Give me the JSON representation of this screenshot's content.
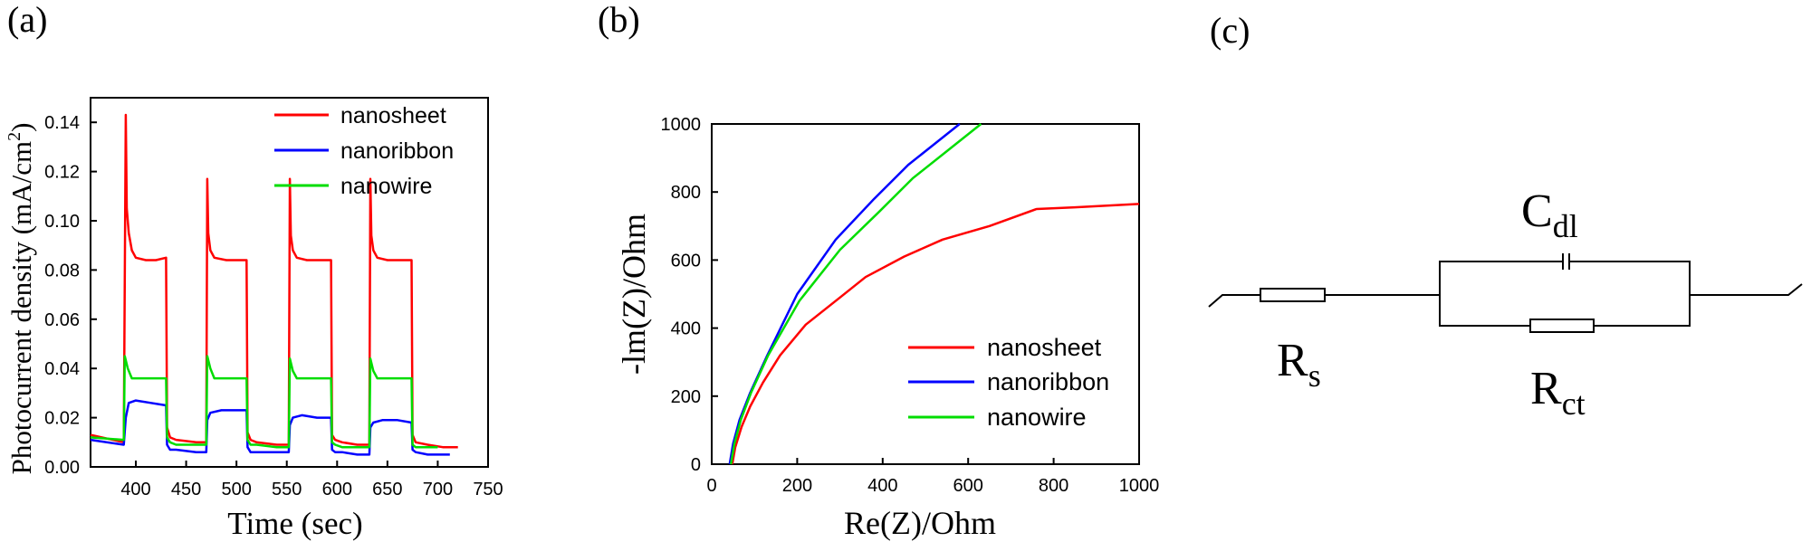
{
  "figure": {
    "panel_labels": [
      "(a)",
      "(b)",
      "(c)"
    ]
  },
  "chart_data": [
    {
      "type": "line",
      "panel": "(a)",
      "xlabel": "Time (sec)",
      "ylabel_main": "Photocurrent density (mA/cm",
      "ylabel_sup": "2",
      "ylabel_end": ")",
      "xlim": [
        355,
        750
      ],
      "ylim": [
        0.0,
        0.15
      ],
      "xticks": [
        400,
        450,
        500,
        550,
        600,
        650,
        700,
        750
      ],
      "yticks": [
        0.0,
        0.02,
        0.04,
        0.06,
        0.08,
        0.1,
        0.12,
        0.14
      ],
      "xtick_labels": [
        "400",
        "450",
        "500",
        "550",
        "600",
        "650",
        "700",
        "750"
      ],
      "ytick_labels": [
        "0.00",
        "0.02",
        "0.04",
        "0.06",
        "0.08",
        "0.10",
        "0.12",
        "0.14"
      ],
      "legend": {
        "position": "top-right",
        "entries": [
          "nanosheet",
          "nanoribbon",
          "nanowire"
        ]
      },
      "series": [
        {
          "name": "nanosheet",
          "color": "#ff0000",
          "x": [
            355,
            388,
            390,
            391,
            393,
            396,
            400,
            410,
            420,
            430,
            431,
            434,
            440,
            460,
            470,
            471,
            472,
            474,
            478,
            490,
            505,
            510,
            511,
            514,
            520,
            540,
            552,
            553,
            554,
            556,
            560,
            570,
            585,
            594,
            595,
            598,
            605,
            620,
            632,
            633,
            634,
            636,
            640,
            650,
            665,
            674,
            675,
            678,
            690,
            705,
            720
          ],
          "y": [
            0.013,
            0.01,
            0.143,
            0.105,
            0.095,
            0.088,
            0.085,
            0.084,
            0.084,
            0.085,
            0.016,
            0.012,
            0.011,
            0.01,
            0.01,
            0.117,
            0.095,
            0.088,
            0.085,
            0.084,
            0.084,
            0.084,
            0.014,
            0.011,
            0.01,
            0.009,
            0.009,
            0.117,
            0.094,
            0.088,
            0.085,
            0.084,
            0.084,
            0.084,
            0.013,
            0.011,
            0.01,
            0.009,
            0.009,
            0.117,
            0.094,
            0.088,
            0.085,
            0.084,
            0.084,
            0.084,
            0.013,
            0.01,
            0.009,
            0.008,
            0.008
          ]
        },
        {
          "name": "nanoribbon",
          "color": "#0000ff",
          "x": [
            355,
            388,
            390,
            393,
            400,
            415,
            430,
            431,
            434,
            440,
            460,
            470,
            471,
            474,
            485,
            500,
            510,
            511,
            514,
            520,
            540,
            552,
            553,
            556,
            565,
            580,
            594,
            595,
            598,
            605,
            620,
            632,
            633,
            636,
            645,
            660,
            674,
            675,
            678,
            690,
            712
          ],
          "y": [
            0.011,
            0.009,
            0.02,
            0.026,
            0.027,
            0.026,
            0.025,
            0.009,
            0.007,
            0.007,
            0.006,
            0.006,
            0.019,
            0.022,
            0.023,
            0.023,
            0.023,
            0.008,
            0.006,
            0.006,
            0.006,
            0.006,
            0.017,
            0.02,
            0.021,
            0.02,
            0.02,
            0.007,
            0.006,
            0.006,
            0.005,
            0.005,
            0.016,
            0.018,
            0.019,
            0.019,
            0.018,
            0.007,
            0.006,
            0.005,
            0.005
          ]
        },
        {
          "name": "nanowire",
          "color": "#00dd00",
          "x": [
            355,
            388,
            389,
            392,
            396,
            410,
            430,
            431,
            434,
            440,
            460,
            470,
            471,
            474,
            478,
            495,
            510,
            511,
            514,
            520,
            540,
            552,
            553,
            556,
            560,
            580,
            594,
            595,
            598,
            605,
            620,
            632,
            633,
            636,
            640,
            660,
            674,
            675,
            678,
            690,
            700
          ],
          "y": [
            0.012,
            0.011,
            0.045,
            0.04,
            0.036,
            0.036,
            0.036,
            0.012,
            0.01,
            0.009,
            0.009,
            0.009,
            0.045,
            0.04,
            0.036,
            0.036,
            0.036,
            0.011,
            0.009,
            0.009,
            0.008,
            0.008,
            0.044,
            0.039,
            0.036,
            0.036,
            0.036,
            0.01,
            0.009,
            0.008,
            0.008,
            0.008,
            0.044,
            0.039,
            0.036,
            0.036,
            0.036,
            0.009,
            0.008,
            0.008,
            0.008
          ]
        }
      ]
    },
    {
      "type": "line",
      "panel": "(b)",
      "xlabel": "Re(Z)/Ohm",
      "ylabel": "-lm(Z)/Ohm",
      "xlim": [
        0,
        1000
      ],
      "ylim": [
        0,
        1000
      ],
      "xticks": [
        0,
        200,
        400,
        600,
        800,
        1000
      ],
      "yticks": [
        0,
        200,
        400,
        600,
        800,
        1000
      ],
      "xtick_labels": [
        "0",
        "200",
        "400",
        "600",
        "800",
        "1000"
      ],
      "ytick_labels": [
        "0",
        "200",
        "400",
        "600",
        "800",
        "1000"
      ],
      "legend": {
        "position": "bottom-right",
        "entries": [
          "nanosheet",
          "nanoribbon",
          "nanowire"
        ]
      },
      "series": [
        {
          "name": "nanosheet",
          "color": "#ff0000",
          "x": [
            48,
            55,
            70,
            90,
            120,
            160,
            220,
            300,
            360,
            450,
            540,
            650,
            760,
            850,
            1000
          ],
          "y": [
            0,
            50,
            110,
            170,
            240,
            320,
            410,
            490,
            550,
            610,
            660,
            700,
            750,
            755,
            765
          ]
        },
        {
          "name": "nanoribbon",
          "color": "#0000ff",
          "x": [
            42,
            50,
            65,
            90,
            130,
            200,
            290,
            380,
            460,
            520,
            580
          ],
          "y": [
            0,
            60,
            130,
            210,
            320,
            500,
            660,
            780,
            880,
            940,
            1000
          ]
        },
        {
          "name": "nanowire",
          "color": "#00dd00",
          "x": [
            45,
            53,
            68,
            92,
            132,
            205,
            300,
            390,
            470,
            550,
            630
          ],
          "y": [
            0,
            60,
            130,
            210,
            320,
            480,
            630,
            740,
            840,
            920,
            1000
          ]
        }
      ]
    }
  ],
  "circuit": {
    "labels": {
      "rs_main": "R",
      "rs_sub": "s",
      "cdl_main": "C",
      "cdl_sub": "dl",
      "rct_main": "R",
      "rct_sub": "ct"
    }
  }
}
